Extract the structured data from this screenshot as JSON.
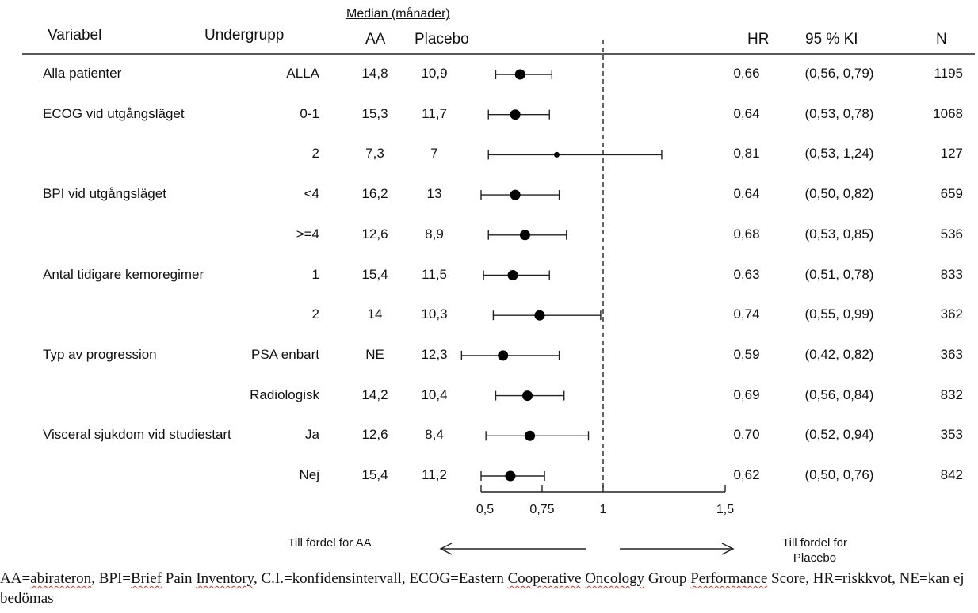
{
  "table": {
    "columns": {
      "variable": "Variabel",
      "subgroup": "Undergrupp",
      "median_header": "Median (månader)",
      "aa": "AA",
      "placebo": "Placebo",
      "hr": "HR",
      "ci": "95 % KI",
      "n": "N"
    }
  },
  "chart_data": {
    "type": "forest",
    "x_ticks": [
      "0,5",
      "0,75",
      "1",
      "1,5"
    ],
    "x_tick_values": [
      0.5,
      0.75,
      1.0,
      1.5
    ],
    "reference_line": 1.0,
    "rows": [
      {
        "variable": "Alla patienter",
        "subgroup": "ALLA",
        "aa": "14,8",
        "placebo": "10,9",
        "hr_text": "0,66",
        "ci_text": "(0,56, 0,79)",
        "n": "1195",
        "hr": 0.66,
        "lo": 0.56,
        "hi": 0.79
      },
      {
        "variable": "ECOG vid utgångsläget",
        "subgroup": "0-1",
        "aa": "15,3",
        "placebo": "11,7",
        "hr_text": "0,64",
        "ci_text": "(0,53, 0,78)",
        "n": "1068",
        "hr": 0.64,
        "lo": 0.53,
        "hi": 0.78
      },
      {
        "variable": "",
        "subgroup": "2",
        "aa": "7,3",
        "placebo": "7",
        "hr_text": "0,81",
        "ci_text": "(0,53, 1,24)",
        "n": "127",
        "hr": 0.81,
        "lo": 0.53,
        "hi": 1.24
      },
      {
        "variable": "BPI vid utgångsläget",
        "subgroup": "<4",
        "aa": "16,2",
        "placebo": "13",
        "hr_text": "0,64",
        "ci_text": "(0,50, 0,82)",
        "n": "659",
        "hr": 0.64,
        "lo": 0.5,
        "hi": 0.82
      },
      {
        "variable": "",
        "subgroup": ">=4",
        "aa": "12,6",
        "placebo": "8,9",
        "hr_text": "0,68",
        "ci_text": "(0,53, 0,85)",
        "n": "536",
        "hr": 0.68,
        "lo": 0.53,
        "hi": 0.85
      },
      {
        "variable": "Antal tidigare kemoregimer",
        "subgroup": "1",
        "aa": "15,4",
        "placebo": "11,5",
        "hr_text": "0,63",
        "ci_text": "(0,51, 0,78)",
        "n": "833",
        "hr": 0.63,
        "lo": 0.51,
        "hi": 0.78
      },
      {
        "variable": "",
        "subgroup": "2",
        "aa": "14",
        "placebo": "10,3",
        "hr_text": "0,74",
        "ci_text": "(0,55, 0,99)",
        "n": "362",
        "hr": 0.74,
        "lo": 0.55,
        "hi": 0.99
      },
      {
        "variable": "Typ av progression",
        "subgroup": "PSA enbart",
        "aa": "NE",
        "placebo": "12,3",
        "hr_text": "0,59",
        "ci_text": "(0,42, 0,82)",
        "n": "363",
        "hr": 0.59,
        "lo": 0.42,
        "hi": 0.82
      },
      {
        "variable": "",
        "subgroup": "Radiologisk",
        "aa": "14,2",
        "placebo": "10,4",
        "hr_text": "0,69",
        "ci_text": "(0,56, 0,84)",
        "n": "832",
        "hr": 0.69,
        "lo": 0.56,
        "hi": 0.84
      },
      {
        "variable": "Visceral sjukdom vid studiestart",
        "subgroup": "Ja",
        "aa": "12,6",
        "placebo": "8,4",
        "hr_text": "0,70",
        "ci_text": "(0,52, 0,94)",
        "n": "353",
        "hr": 0.7,
        "lo": 0.52,
        "hi": 0.94
      },
      {
        "variable": "",
        "subgroup": "Nej",
        "aa": "15,4",
        "placebo": "11,2",
        "hr_text": "0,62",
        "ci_text": "(0,50, 0,76)",
        "n": "842",
        "hr": 0.62,
        "lo": 0.5,
        "hi": 0.76
      }
    ],
    "annotations": {
      "left": "Till fördel för AA",
      "right": "Till fördel för Placebo"
    }
  },
  "footnote": {
    "segments": [
      {
        "text": "AA=",
        "sq": false
      },
      {
        "text": "abirateron",
        "sq": true
      },
      {
        "text": ", BPI=",
        "sq": false
      },
      {
        "text": "Brief",
        "sq": true
      },
      {
        "text": " Pain ",
        "sq": false
      },
      {
        "text": "Inventory",
        "sq": true
      },
      {
        "text": ", C.I.=konfidensintervall, ECOG=Eastern ",
        "sq": false
      },
      {
        "text": "Cooperative",
        "sq": true
      },
      {
        "text": " ",
        "sq": false
      },
      {
        "text": "Oncology",
        "sq": true
      },
      {
        "text": " Group ",
        "sq": false
      },
      {
        "text": "Performance",
        "sq": true
      },
      {
        "text": " Score, HR=riskkvot, NE=kan ej bedömas",
        "sq": false
      }
    ]
  }
}
